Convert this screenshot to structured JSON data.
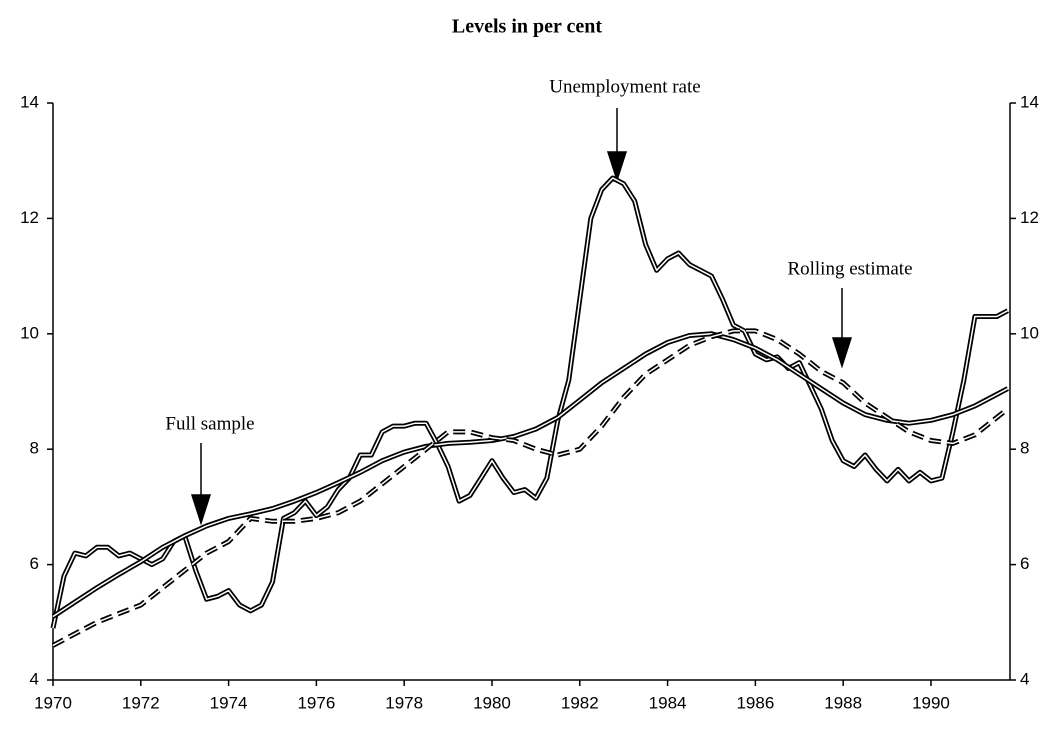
{
  "chart_data": {
    "type": "line",
    "title": "Levels in per cent",
    "annotations": [
      "Unemployment rate",
      "Rolling estimate",
      "Full sample"
    ],
    "xlim": [
      1970,
      1991.8
    ],
    "xticks": [
      1970,
      1972,
      1974,
      1976,
      1978,
      1980,
      1982,
      1984,
      1986,
      1988,
      1990
    ],
    "ylim": [
      4,
      14
    ],
    "yticks": [
      4,
      6,
      8,
      10,
      12,
      14
    ],
    "y2lim": [
      4,
      14
    ],
    "y2ticks": [
      4,
      6,
      8,
      10,
      12,
      14
    ],
    "series": [
      {
        "color": "#000000",
        "style": "solid",
        "x": [
          1970,
          1970.25,
          1970.5,
          1970.75,
          1971,
          1971.25,
          1971.5,
          1971.75,
          1972,
          1972.25,
          1972.5,
          1972.75,
          1973,
          1973.25,
          1973.5,
          1973.75,
          1974,
          1974.25,
          1974.5,
          1974.75,
          1975,
          1975.25,
          1975.5,
          1975.75,
          1976,
          1976.25,
          1976.5,
          1976.75,
          1977,
          1977.25,
          1977.5,
          1977.75,
          1978,
          1978.25,
          1978.5,
          1978.75,
          1979,
          1979.25,
          1979.5,
          1979.75,
          1980,
          1980.25,
          1980.5,
          1980.75,
          1981,
          1981.25,
          1981.5,
          1981.75,
          1982,
          1982.25,
          1982.5,
          1982.75,
          1983,
          1983.25,
          1983.5,
          1983.75,
          1984,
          1984.25,
          1984.5,
          1984.75,
          1985,
          1985.25,
          1985.5,
          1985.75,
          1986,
          1986.25,
          1986.5,
          1986.75,
          1987,
          1987.25,
          1987.5,
          1987.75,
          1988,
          1988.25,
          1988.5,
          1988.75,
          1989,
          1989.25,
          1989.5,
          1989.75,
          1990,
          1990.25,
          1990.5,
          1990.75,
          1991,
          1991.25,
          1991.5,
          1991.75
        ],
        "values": [
          4.9,
          5.8,
          6.2,
          6.15,
          6.3,
          6.3,
          6.15,
          6.2,
          6.1,
          6.0,
          6.1,
          6.4,
          6.5,
          5.9,
          5.4,
          5.45,
          5.55,
          5.3,
          5.2,
          5.3,
          5.7,
          6.8,
          6.9,
          7.1,
          6.85,
          7.0,
          7.3,
          7.5,
          7.9,
          7.9,
          8.3,
          8.4,
          8.4,
          8.45,
          8.45,
          8.1,
          7.7,
          7.1,
          7.2,
          7.5,
          7.8,
          7.5,
          7.25,
          7.3,
          7.15,
          7.5,
          8.5,
          9.2,
          10.6,
          12.0,
          12.5,
          12.7,
          12.6,
          12.3,
          11.55,
          11.1,
          11.3,
          11.4,
          11.2,
          11.1,
          11.0,
          10.6,
          10.15,
          10.05,
          9.65,
          9.55,
          9.6,
          9.4,
          9.5,
          9.1,
          8.7,
          8.15,
          7.8,
          7.7,
          7.9,
          7.65,
          7.45,
          7.65,
          7.45,
          7.6,
          7.45,
          7.5,
          8.3,
          9.2,
          10.3,
          10.3,
          10.3,
          10.4
        ]
      },
      {
        "color": "#000000",
        "style": "solid",
        "x": [
          1970,
          1970.5,
          1971,
          1971.5,
          1972,
          1972.5,
          1973,
          1973.5,
          1974,
          1974.5,
          1975,
          1975.5,
          1976,
          1976.5,
          1977,
          1977.5,
          1978,
          1978.5,
          1979,
          1979.5,
          1980,
          1980.5,
          1981,
          1981.5,
          1982,
          1982.5,
          1983,
          1983.5,
          1984,
          1984.5,
          1985,
          1985.5,
          1986,
          1986.5,
          1987,
          1987.5,
          1988,
          1988.5,
          1989,
          1989.5,
          1990,
          1990.5,
          1991,
          1991.5,
          1991.75
        ],
        "values": [
          5.1,
          5.35,
          5.6,
          5.83,
          6.05,
          6.3,
          6.5,
          6.67,
          6.8,
          6.88,
          6.97,
          7.1,
          7.25,
          7.42,
          7.6,
          7.8,
          7.95,
          8.05,
          8.1,
          8.12,
          8.15,
          8.22,
          8.35,
          8.55,
          8.85,
          9.15,
          9.4,
          9.65,
          9.85,
          9.97,
          10.0,
          9.9,
          9.75,
          9.55,
          9.3,
          9.05,
          8.8,
          8.6,
          8.5,
          8.45,
          8.5,
          8.6,
          8.75,
          8.95,
          9.05
        ]
      },
      {
        "color": "#000000",
        "style": "dashed",
        "x": [
          1970,
          1970.5,
          1971,
          1971.5,
          1972,
          1972.5,
          1973,
          1973.5,
          1974,
          1974.5,
          1975,
          1975.5,
          1976,
          1976.5,
          1977,
          1977.5,
          1978,
          1978.5,
          1979,
          1979.5,
          1980,
          1980.5,
          1981,
          1981.5,
          1982,
          1982.5,
          1983,
          1983.5,
          1984,
          1984.5,
          1985,
          1985.5,
          1986,
          1986.5,
          1987,
          1987.5,
          1988,
          1988.5,
          1989,
          1989.5,
          1990,
          1990.5,
          1991,
          1991.5,
          1991.75
        ],
        "values": [
          4.6,
          4.8,
          5.0,
          5.15,
          5.3,
          5.6,
          5.9,
          6.2,
          6.4,
          6.8,
          6.75,
          6.75,
          6.8,
          6.9,
          7.1,
          7.4,
          7.7,
          8.0,
          8.3,
          8.3,
          8.2,
          8.15,
          8.0,
          7.9,
          8.0,
          8.4,
          8.9,
          9.3,
          9.55,
          9.8,
          9.95,
          10.05,
          10.05,
          9.9,
          9.65,
          9.35,
          9.15,
          8.8,
          8.55,
          8.3,
          8.15,
          8.1,
          8.25,
          8.55,
          8.7
        ]
      }
    ]
  }
}
